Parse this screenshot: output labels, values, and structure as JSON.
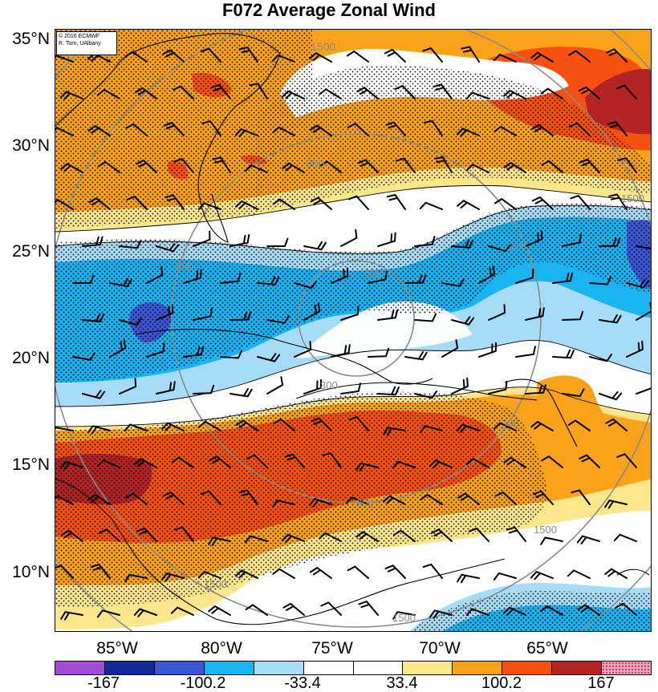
{
  "title": "F072 Average Zonal Wind",
  "credit": {
    "line1": "© 2016 ECMWF",
    "line2": "R. Torn, UAlbany"
  },
  "lat_labels": [
    "35°N",
    "30°N",
    "25°N",
    "20°N",
    "15°N",
    "10°N"
  ],
  "lon_labels": [
    "85°W",
    "80°W",
    "75°W",
    "70°W",
    "65°W"
  ],
  "radius_labels": [
    "1500",
    "900",
    "300"
  ],
  "colorbar": {
    "colors": [
      "#a64ad8",
      "#102a9a",
      "#3b57d6",
      "#1ab4f2",
      "#a6dcf8",
      "#ffffff",
      "#ffffff",
      "#fde78a",
      "#f9a21a",
      "#f65110",
      "#b52424",
      "#f6a0c0"
    ],
    "labels": [
      "-167",
      "-100.2",
      "-33.4",
      "33.4",
      "100.2",
      "167"
    ]
  },
  "colors": {
    "strong_neg": "#3b57d6",
    "mod_neg": "#1ab4f2",
    "weak_neg": "#a6dcf8",
    "weak_pos": "#fde78a",
    "mod_pos": "#f9a21a",
    "strong_pos": "#f65110",
    "very_strong_pos": "#b52424"
  }
}
